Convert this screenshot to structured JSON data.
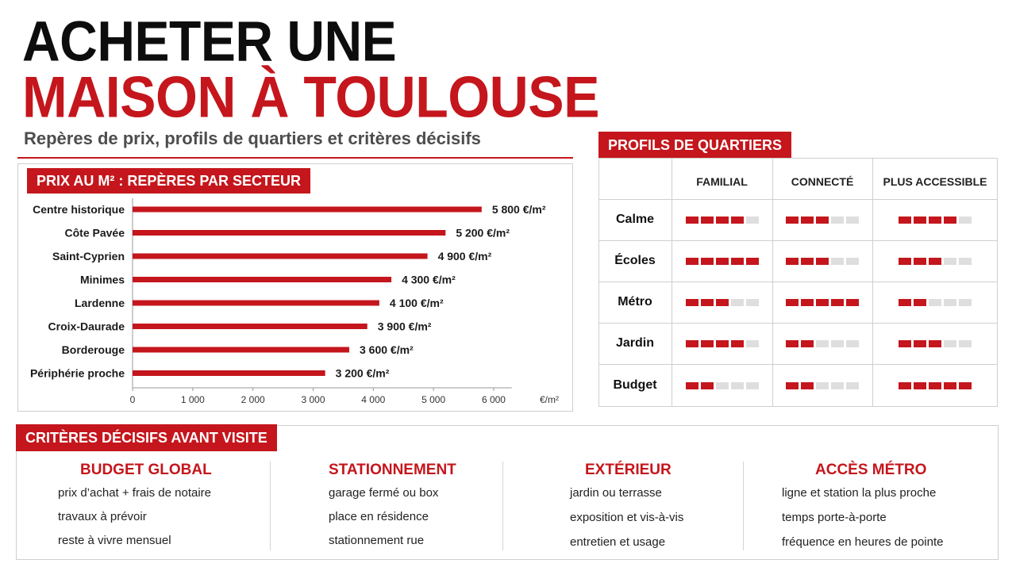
{
  "header": {
    "title_line1": "ACHETER UNE",
    "title_line2": "MAISON À TOULOUSE",
    "subtitle": "Repères de prix, profils de quartiers et critères décisifs"
  },
  "price_section": {
    "chip": "PRIX AU M² : REPÈRES PAR SECTEUR"
  },
  "chart_data": {
    "type": "bar",
    "orientation": "horizontal",
    "categories": [
      "Centre historique",
      "Côte Pavée",
      "Saint-Cyprien",
      "Minimes",
      "Lardenne",
      "Croix-Daurade",
      "Borderouge",
      "Périphérie proche"
    ],
    "values": [
      5800,
      5200,
      4900,
      4300,
      4100,
      3900,
      3600,
      3200
    ],
    "value_labels": [
      "5 800 €/m²",
      "5 200 €/m²",
      "4 900 €/m²",
      "4 300 €/m²",
      "4 100 €/m²",
      "3 900 €/m²",
      "3 600 €/m²",
      "3 200 €/m²"
    ],
    "xticks": [
      0,
      1000,
      2000,
      3000,
      4000,
      5000,
      6000
    ],
    "xtick_labels": [
      "0",
      "1 000",
      "2 000",
      "3 000",
      "4 000",
      "5 000",
      "6 000"
    ],
    "xunit": "€/m²",
    "xlim": [
      0,
      6500
    ],
    "bar_color": "#c4161c",
    "grid": false
  },
  "profiles": {
    "chip": "PROFILS DE QUARTIERS",
    "columns": [
      "FAMILIAL",
      "CONNECTÉ",
      "PLUS ACCESSIBLE"
    ],
    "rows": [
      {
        "label": "Calme",
        "scores": [
          4,
          3,
          4
        ]
      },
      {
        "label": "Écoles",
        "scores": [
          5,
          3,
          3
        ]
      },
      {
        "label": "Métro",
        "scores": [
          3,
          5,
          2
        ]
      },
      {
        "label": "Jardin",
        "scores": [
          4,
          2,
          3
        ]
      },
      {
        "label": "Budget",
        "scores": [
          2,
          2,
          5
        ]
      }
    ],
    "max_score": 5,
    "on_color": "#c4161c",
    "off_color": "#dedede"
  },
  "criteria": {
    "chip": "CRITÈRES DÉCISIFS AVANT VISITE",
    "columns": [
      {
        "title": "BUDGET GLOBAL",
        "items": [
          "prix d’achat + frais de notaire",
          "travaux à prévoir",
          "reste à vivre mensuel"
        ]
      },
      {
        "title": "STATIONNEMENT",
        "items": [
          "garage fermé ou box",
          "place en résidence",
          "stationnement rue"
        ]
      },
      {
        "title": "EXTÉRIEUR",
        "items": [
          "jardin ou terrasse",
          "exposition et vis-à-vis",
          "entretien et usage"
        ]
      },
      {
        "title": "ACCÈS MÉTRO",
        "items": [
          "ligne et station la plus proche",
          "temps porte-à-porte",
          "fréquence en heures de pointe"
        ]
      }
    ]
  }
}
